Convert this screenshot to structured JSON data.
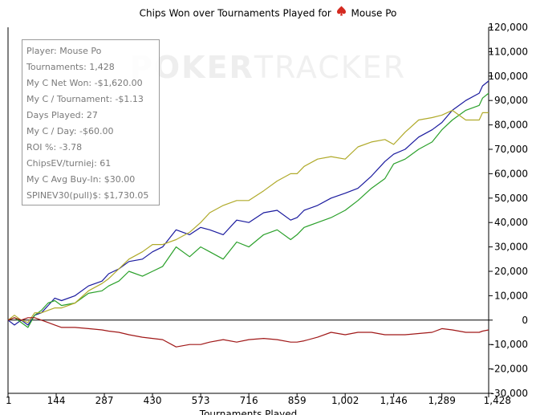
{
  "chart_data": {
    "type": "line",
    "title_prefix": "Chips Won over Tournaments Played for",
    "title_player": "Mouse Po",
    "xlabel": "Tournaments Played",
    "xlim": [
      1,
      1428
    ],
    "ylim": [
      -30000,
      120000
    ],
    "x_ticks": [
      "1",
      "144",
      "287",
      "430",
      "573",
      "716",
      "859",
      "1,002",
      "1,146",
      "1,289",
      "1,428"
    ],
    "y_ticks": [
      "120,000",
      "110,000",
      "100,000",
      "90,000",
      "80,000",
      "70,000",
      "60,000",
      "50,000",
      "40,000",
      "30,000",
      "20,000",
      "10,000",
      "0",
      "-10,000",
      "-20,000",
      "-30,000"
    ],
    "y_tick_values": [
      120000,
      110000,
      100000,
      90000,
      80000,
      70000,
      60000,
      50000,
      40000,
      30000,
      20000,
      10000,
      0,
      -10000,
      -20000,
      -30000
    ],
    "x_tick_values": [
      1,
      144,
      287,
      430,
      573,
      716,
      859,
      1002,
      1146,
      1289,
      1428
    ],
    "grid": false,
    "series": [
      {
        "color": "#1a1a9e",
        "x": [
          1,
          20,
          40,
          60,
          80,
          100,
          120,
          140,
          160,
          200,
          240,
          280,
          300,
          330,
          360,
          400,
          430,
          460,
          500,
          540,
          573,
          600,
          640,
          680,
          716,
          760,
          800,
          840,
          859,
          880,
          920,
          960,
          1002,
          1040,
          1080,
          1120,
          1146,
          1180,
          1220,
          1260,
          1289,
          1320,
          1360,
          1400,
          1410,
          1428
        ],
        "y": [
          0,
          -2000,
          0,
          -2000,
          2000,
          3000,
          6000,
          9000,
          8000,
          10000,
          14000,
          16000,
          19000,
          21000,
          24000,
          25000,
          28000,
          30000,
          37000,
          35000,
          38000,
          37000,
          35000,
          41000,
          40000,
          44000,
          45000,
          41000,
          42000,
          45000,
          47000,
          50000,
          52000,
          54000,
          59000,
          65000,
          68000,
          70000,
          75000,
          78000,
          81000,
          86000,
          90000,
          93000,
          96000,
          98000
        ]
      },
      {
        "color": "#2aa02a",
        "x": [
          1,
          20,
          40,
          60,
          80,
          100,
          120,
          140,
          160,
          200,
          240,
          280,
          300,
          330,
          360,
          400,
          430,
          460,
          500,
          540,
          573,
          600,
          640,
          680,
          716,
          760,
          800,
          840,
          859,
          880,
          920,
          960,
          1002,
          1040,
          1080,
          1120,
          1146,
          1180,
          1220,
          1260,
          1289,
          1320,
          1360,
          1400,
          1410,
          1428
        ],
        "y": [
          0,
          1000,
          -1000,
          -3000,
          2000,
          4000,
          7000,
          8000,
          6000,
          7000,
          11000,
          12000,
          14000,
          16000,
          20000,
          18000,
          20000,
          22000,
          30000,
          26000,
          30000,
          28000,
          25000,
          32000,
          30000,
          35000,
          37000,
          33000,
          35000,
          38000,
          40000,
          42000,
          45000,
          49000,
          54000,
          58000,
          64000,
          66000,
          70000,
          73000,
          78000,
          82000,
          86000,
          88000,
          91000,
          93000
        ]
      },
      {
        "color": "#b0aa2a",
        "x": [
          1,
          20,
          40,
          60,
          80,
          100,
          120,
          140,
          160,
          200,
          240,
          280,
          300,
          330,
          360,
          400,
          430,
          460,
          500,
          540,
          573,
          600,
          640,
          680,
          716,
          760,
          800,
          840,
          859,
          880,
          920,
          960,
          1002,
          1040,
          1080,
          1120,
          1146,
          1180,
          1220,
          1260,
          1289,
          1320,
          1360,
          1400,
          1410,
          1428
        ],
        "y": [
          0,
          2000,
          0,
          -1000,
          3000,
          3000,
          4000,
          5000,
          5000,
          7000,
          12000,
          15000,
          17000,
          21000,
          25000,
          28000,
          31000,
          31000,
          33000,
          36000,
          40000,
          44000,
          47000,
          49000,
          49000,
          53000,
          57000,
          60000,
          60000,
          63000,
          66000,
          67000,
          66000,
          71000,
          73000,
          74000,
          72000,
          77000,
          82000,
          83000,
          84000,
          86000,
          82000,
          82000,
          85000,
          85000
        ]
      },
      {
        "color": "#a01818",
        "x": [
          1,
          20,
          40,
          60,
          80,
          100,
          120,
          140,
          160,
          200,
          240,
          280,
          300,
          330,
          360,
          400,
          430,
          460,
          500,
          540,
          573,
          600,
          640,
          680,
          716,
          760,
          800,
          840,
          859,
          880,
          920,
          960,
          1002,
          1040,
          1080,
          1120,
          1146,
          1180,
          1220,
          1260,
          1289,
          1320,
          1360,
          1400,
          1410,
          1428
        ],
        "y": [
          0,
          1000,
          0,
          1000,
          1000,
          0,
          -1000,
          -2000,
          -3000,
          -3000,
          -3500,
          -4000,
          -4500,
          -5000,
          -6000,
          -7000,
          -7500,
          -8000,
          -11000,
          -10000,
          -10000,
          -9000,
          -8000,
          -9000,
          -8000,
          -7500,
          -8000,
          -9000,
          -9000,
          -8500,
          -7000,
          -5000,
          -6000,
          -5000,
          -5000,
          -6000,
          -6000,
          -6000,
          -5500,
          -5000,
          -3500,
          -4000,
          -5000,
          -5000,
          -4500,
          -4000
        ]
      }
    ]
  },
  "stats": [
    "Player: Mouse Po",
    "Tournaments: 1,428",
    "My C Net Won: -$1,620.00",
    "My C / Tournament: -$1.13",
    "Days Played: 27",
    "My C / Day: -$60.00",
    "ROI %: -3.78",
    "ChipsEV/turniej: 61",
    "My C Avg Buy-In: $30.00",
    "SPINEV30(pull)$: $1,730.05"
  ],
  "watermark": {
    "bold": "POKER",
    "light": "TRACKER"
  }
}
